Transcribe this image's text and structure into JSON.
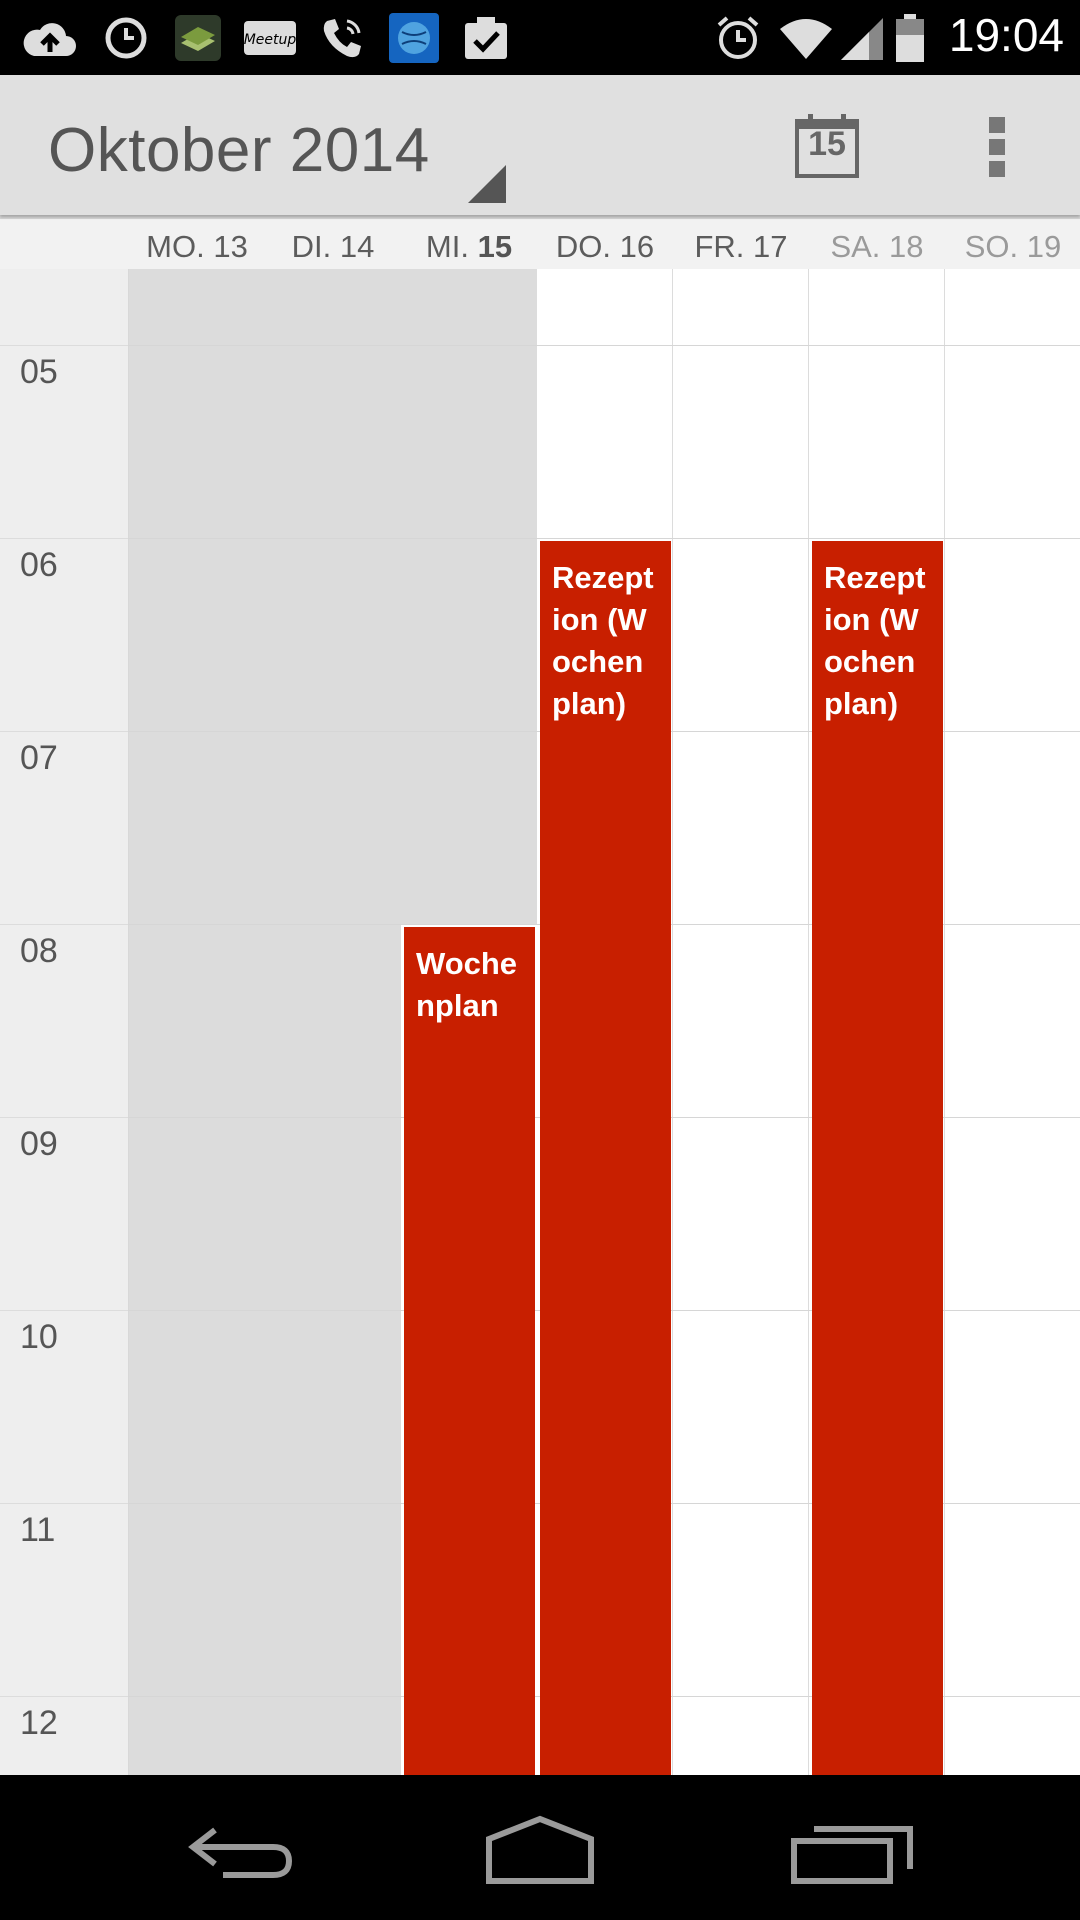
{
  "status_bar": {
    "time": "19:04",
    "left_icons": [
      "cloud-upload-icon",
      "clock-icon",
      "book-app-icon",
      "meetup-icon",
      "phone-call-icon",
      "globe-app-icon",
      "clipboard-check-icon"
    ],
    "right_icons": [
      "alarm-icon",
      "wifi-icon",
      "signal-icon",
      "battery-icon"
    ],
    "meetup_text": "Meetup"
  },
  "action_bar": {
    "month_title": "Oktober 2014",
    "today_number": "15"
  },
  "days": [
    {
      "abbr": "MO.",
      "num": "13",
      "state": "past"
    },
    {
      "abbr": "DI.",
      "num": "14",
      "state": "past"
    },
    {
      "abbr": "MI.",
      "num": "15",
      "state": "today"
    },
    {
      "abbr": "DO.",
      "num": "16",
      "state": "future"
    },
    {
      "abbr": "FR.",
      "num": "17",
      "state": "future"
    },
    {
      "abbr": "SA.",
      "num": "18",
      "state": "weekend"
    },
    {
      "abbr": "SO.",
      "num": "19",
      "state": "weekend"
    }
  ],
  "hours": [
    "05",
    "06",
    "07",
    "08",
    "09",
    "10",
    "11",
    "12"
  ],
  "events": [
    {
      "title": "Wochenplan",
      "day": "MI. 15",
      "start": "08:00"
    },
    {
      "title": "Rezeption (Wochenplan)",
      "day": "DO. 16",
      "start": "06:00"
    },
    {
      "title": "Rezeption (Wochenplan)",
      "day": "SA. 18",
      "start": "06:00"
    }
  ],
  "colors": {
    "event": "#c81f00",
    "past_column": "#dcdcdc",
    "action_bar": "#e0e0e0"
  },
  "nav_bar": {
    "icons": [
      "back-icon",
      "home-icon",
      "recent-apps-icon"
    ]
  }
}
